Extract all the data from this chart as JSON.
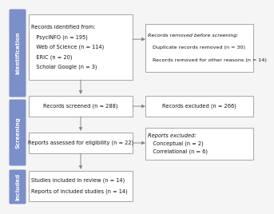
{
  "bg_color": "#f5f5f5",
  "sidebar_color": "#7b8fc8",
  "box_border_color": "#999999",
  "box_fill": "#ffffff",
  "arrow_color": "#888888",
  "text_color": "#111111",
  "sidebar_labels": [
    "Identification",
    "Screening",
    "Included"
  ],
  "box1_text_lines": [
    [
      "Records identified from:",
      false
    ],
    [
      "   PsycINFO (n = 195)",
      false
    ],
    [
      "   Web of Science (n = 114)",
      false
    ],
    [
      "   ERIC (n = 20)",
      false
    ],
    [
      "   Scholar Google (n = 3)",
      false
    ]
  ],
  "box2_text_lines": [
    [
      "Records removed before screening:",
      true
    ],
    [
      "   Duplicate records removed (n = 30)",
      false
    ],
    [
      "   Records removed for other reasons (n = 14)",
      false
    ]
  ],
  "box3_text": "Records screened (n = 288)",
  "box4_text": "Records excluded (n = 266)",
  "box5_text": "Reports assessed for eligibility (n = 22)",
  "box6_text_lines": [
    [
      "Reports excluded:",
      true
    ],
    [
      "   Conceptual (n = 2)",
      false
    ],
    [
      "   Correlational (n = 6)",
      false
    ]
  ],
  "box7_text_lines": [
    [
      "Studies included in review (n = 14)",
      false
    ],
    [
      "Reports of included studies (n = 14)",
      false
    ]
  ]
}
